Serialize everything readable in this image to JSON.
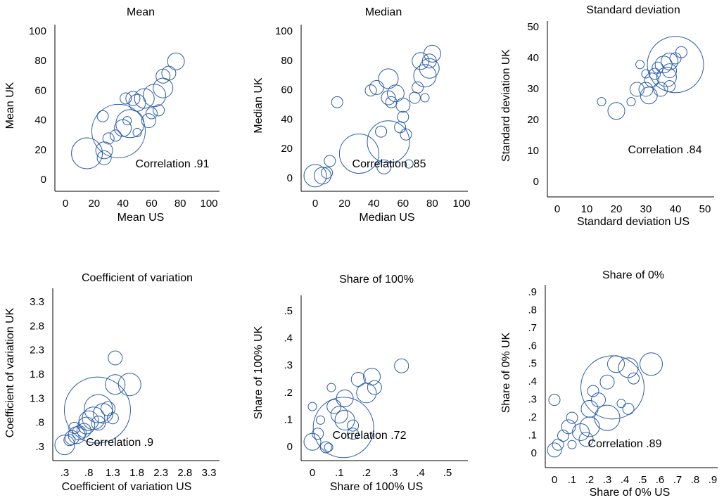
{
  "chart_data": [
    {
      "type": "scatter",
      "title": "Mean",
      "xlabel": "Mean US",
      "ylabel": "Mean UK",
      "annotation": "Correlation .91",
      "color": "#2a5caa",
      "x": [
        15,
        27,
        27,
        26,
        37,
        45,
        40,
        42,
        47,
        50,
        55,
        58,
        60,
        65,
        62,
        68,
        68,
        72,
        77,
        35,
        50,
        43,
        30
      ],
      "y": [
        18,
        15,
        20,
        43,
        33,
        38,
        35,
        55,
        55,
        52,
        55,
        40,
        45,
        47,
        57,
        62,
        70,
        72,
        80,
        30,
        32,
        40,
        28
      ],
      "sizes": [
        121,
        25,
        36,
        16,
        361,
        100,
        36,
        16,
        25,
        36,
        49,
        25,
        16,
        16,
        64,
        49,
        25,
        25,
        36,
        16,
        9,
        9,
        16
      ],
      "xlim": [
        0,
        100
      ],
      "ylim": [
        0,
        100
      ],
      "xticks": [
        0,
        20,
        40,
        60,
        80,
        100
      ],
      "yticks": [
        0,
        20,
        40,
        60,
        80,
        100
      ]
    },
    {
      "type": "scatter",
      "title": "Median",
      "xlabel": "Median US",
      "ylabel": "Median UK",
      "annotation": "Correlation .85",
      "color": "#2a5caa",
      "x": [
        0,
        5,
        8,
        10,
        15,
        30,
        38,
        42,
        45,
        47,
        50,
        50,
        50,
        52,
        55,
        58,
        60,
        60,
        62,
        64,
        68,
        72,
        75,
        75,
        78,
        80,
        78,
        70
      ],
      "y": [
        2,
        2,
        4,
        12,
        52,
        17,
        60,
        62,
        32,
        8,
        25,
        68,
        55,
        52,
        58,
        35,
        42,
        50,
        30,
        10,
        55,
        80,
        70,
        55,
        80,
        85,
        75,
        62
      ],
      "sizes": [
        64,
        36,
        16,
        16,
        16,
        196,
        16,
        25,
        16,
        25,
        225,
        49,
        25,
        16,
        36,
        16,
        16,
        25,
        16,
        9,
        16,
        36,
        64,
        9,
        25,
        36,
        49,
        16
      ],
      "xlim": [
        0,
        100
      ],
      "ylim": [
        0,
        100
      ],
      "xticks": [
        0,
        20,
        40,
        60,
        80,
        100
      ],
      "yticks": [
        0,
        20,
        40,
        60,
        80,
        100
      ]
    },
    {
      "type": "scatter",
      "title": "Standard deviation",
      "xlabel": "Standard deviation US",
      "ylabel": "Standard deviation UK",
      "annotation": "Correlation .84",
      "color": "#2a5caa",
      "x": [
        15,
        20,
        25,
        27,
        28,
        30,
        31,
        32,
        33,
        34,
        35,
        36,
        37,
        38,
        38,
        40,
        40,
        42,
        38,
        30
      ],
      "y": [
        26,
        23,
        26,
        30,
        38,
        30,
        28,
        33,
        35,
        37,
        30,
        38,
        34,
        36,
        39,
        38,
        40,
        42,
        31,
        35
      ],
      "sizes": [
        9,
        36,
        9,
        25,
        9,
        25,
        36,
        25,
        16,
        16,
        25,
        36,
        49,
        25,
        36,
        400,
        16,
        16,
        16,
        9
      ],
      "xlim": [
        0,
        50
      ],
      "ylim": [
        0,
        50
      ],
      "xticks": [
        0,
        10,
        20,
        30,
        40,
        50
      ],
      "yticks": [
        0,
        10,
        20,
        30,
        40,
        50
      ]
    },
    {
      "type": "scatter",
      "title": "Coefficient of variation",
      "xlabel": "Coefficient of variation US",
      "ylabel": "Coefficient of variation UK",
      "annotation": "Correlation .9",
      "color": "#2a5caa",
      "x": [
        0.3,
        0.45,
        0.55,
        0.6,
        0.7,
        0.75,
        0.8,
        0.9,
        1.0,
        1.1,
        1.2,
        0.98,
        1.35,
        1.65,
        1.35,
        0.4,
        0.5,
        1.0,
        1.3
      ],
      "y": [
        0.35,
        0.5,
        0.55,
        0.6,
        0.65,
        0.75,
        0.85,
        0.9,
        1.1,
        1.0,
        1.1,
        1.07,
        1.6,
        1.6,
        2.15,
        0.45,
        0.7,
        0.8,
        0.9
      ],
      "sizes": [
        49,
        25,
        36,
        25,
        25,
        36,
        49,
        64,
        100,
        49,
        25,
        552,
        49,
        64,
        25,
        16,
        16,
        25,
        16
      ],
      "xlim": [
        0.3,
        3.3
      ],
      "ylim": [
        0.3,
        3.3
      ],
      "xticks": [
        {
          "value": 0.3,
          "label": ".3"
        },
        {
          "value": 0.8,
          "label": ".8"
        },
        1.3,
        1.8,
        2.3,
        2.8,
        3.3
      ],
      "yticks": [
        {
          "value": 0.3,
          "label": ".3"
        },
        {
          "value": 0.8,
          "label": ".8"
        },
        1.3,
        1.8,
        2.3,
        2.8,
        3.3
      ]
    },
    {
      "type": "scatter",
      "title": "Share of 100%",
      "xlabel": "Share of 100% US",
      "ylabel": "Share of 100% UK",
      "annotation": "Correlation .72",
      "color": "#2a5caa",
      "x": [
        0,
        0.02,
        0.03,
        0,
        0.05,
        0.07,
        0.08,
        0.115,
        0.12,
        0.12,
        0.15,
        0.17,
        0.2,
        0.22,
        0.23,
        0.33,
        0.06,
        0.1,
        0.15
      ],
      "y": [
        0.02,
        0.05,
        0.1,
        0.15,
        0,
        0.22,
        0.15,
        0.073,
        0.1,
        0.18,
        0.05,
        0.25,
        0.2,
        0.26,
        0.22,
        0.3,
        0,
        0.12,
        0.08
      ],
      "sizes": [
        36,
        16,
        9,
        9,
        16,
        9,
        25,
        462,
        49,
        36,
        16,
        25,
        49,
        36,
        25,
        25,
        9,
        36,
        16
      ],
      "xlim": [
        0,
        0.5
      ],
      "ylim": [
        0,
        0.5
      ],
      "xticks": [
        0,
        {
          "value": 0.1,
          "label": ".1"
        },
        {
          "value": 0.2,
          "label": ".2"
        },
        {
          "value": 0.3,
          "label": ".3"
        },
        {
          "value": 0.4,
          "label": ".4"
        },
        {
          "value": 0.5,
          "label": ".5"
        }
      ],
      "yticks": [
        0,
        {
          "value": 0.1,
          "label": ".1"
        },
        {
          "value": 0.2,
          "label": ".2"
        },
        {
          "value": 0.3,
          "label": ".3"
        },
        {
          "value": 0.4,
          "label": ".4"
        },
        {
          "value": 0.5,
          "label": ".5"
        }
      ]
    },
    {
      "type": "scatter",
      "title": "Share of 0%",
      "xlabel": "Share of 0% US",
      "ylabel": "Share of 0% UK",
      "annotation": "Correlation .89",
      "color": "#2a5caa",
      "x": [
        0,
        0.02,
        0,
        0.05,
        0.08,
        0.1,
        0.15,
        0.2,
        0.2,
        0.25,
        0.22,
        0.3,
        0.3,
        0.35,
        0.42,
        0.33,
        0.55,
        0.45,
        0.42,
        0.38,
        0.18,
        0.1
      ],
      "y": [
        0.02,
        0.05,
        0.3,
        0.1,
        0.15,
        0.2,
        0.12,
        0.15,
        0.25,
        0.3,
        0.35,
        0.2,
        0.4,
        0.5,
        0.48,
        0.37,
        0.5,
        0.42,
        0.25,
        0.28,
        0.08,
        0.05
      ],
      "sizes": [
        25,
        16,
        16,
        16,
        25,
        16,
        36,
        49,
        36,
        25,
        16,
        81,
        25,
        36,
        49,
        506,
        64,
        16,
        16,
        9,
        25,
        9
      ],
      "xlim": [
        0,
        0.9
      ],
      "ylim": [
        0,
        0.9
      ],
      "xticks": [
        0,
        {
          "value": 0.1,
          "label": ".1"
        },
        {
          "value": 0.2,
          "label": ".2"
        },
        {
          "value": 0.3,
          "label": ".3"
        },
        {
          "value": 0.4,
          "label": ".4"
        },
        {
          "value": 0.5,
          "label": ".5"
        },
        {
          "value": 0.6,
          "label": ".6"
        },
        {
          "value": 0.7,
          "label": ".7"
        },
        {
          "value": 0.8,
          "label": ".8"
        },
        {
          "value": 0.9,
          "label": ".9"
        }
      ],
      "yticks": [
        0,
        {
          "value": 0.1,
          "label": ".1"
        },
        {
          "value": 0.2,
          "label": ".2"
        },
        {
          "value": 0.3,
          "label": ".3"
        },
        {
          "value": 0.4,
          "label": ".4"
        },
        {
          "value": 0.5,
          "label": ".5"
        },
        {
          "value": 0.6,
          "label": ".6"
        },
        {
          "value": 0.7,
          "label": ".7"
        },
        {
          "value": 0.8,
          "label": ".8"
        },
        {
          "value": 0.9,
          "label": ".9"
        }
      ]
    }
  ]
}
